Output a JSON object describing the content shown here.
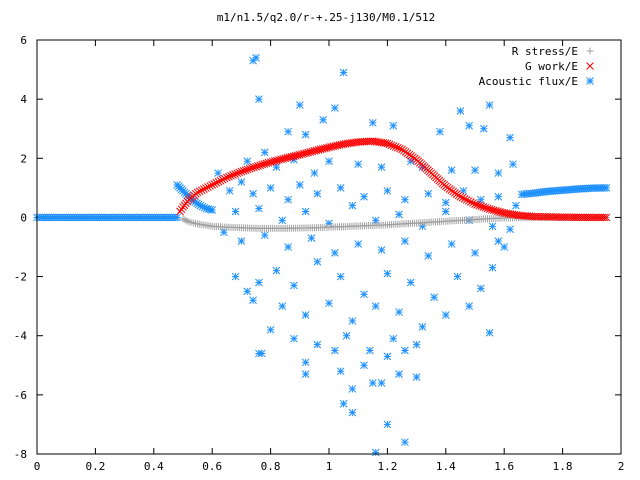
{
  "chart_data": {
    "type": "scatter",
    "title": "m1/n1.5/q2.0/r-+.25-j130/M0.1/512",
    "xlabel": "",
    "ylabel": "",
    "xlim": [
      0,
      2
    ],
    "ylim": [
      -8,
      6
    ],
    "grid": false,
    "legend_position": "top-right",
    "x_ticks": [
      "0",
      "0.2",
      "0.4",
      "0.6",
      "0.8",
      "1",
      "1.2",
      "1.4",
      "1.6",
      "1.8",
      "2"
    ],
    "y_ticks": [
      "6",
      "4",
      "2",
      "0",
      "-2",
      "-4",
      "-6",
      "-8"
    ],
    "series": [
      {
        "name": "R stress/E",
        "marker": "plus",
        "color": "#a0a0a0",
        "points": [
          [
            0.5,
            -0.05
          ],
          [
            0.52,
            -0.15
          ],
          [
            0.55,
            -0.22
          ],
          [
            0.6,
            -0.3
          ],
          [
            0.65,
            -0.33
          ],
          [
            0.7,
            -0.35
          ],
          [
            0.75,
            -0.37
          ],
          [
            0.8,
            -0.37
          ],
          [
            0.85,
            -0.37
          ],
          [
            0.9,
            -0.36
          ],
          [
            0.95,
            -0.35
          ],
          [
            1.0,
            -0.33
          ],
          [
            1.05,
            -0.31
          ],
          [
            1.1,
            -0.29
          ],
          [
            1.15,
            -0.27
          ],
          [
            1.2,
            -0.25
          ],
          [
            1.25,
            -0.22
          ],
          [
            1.3,
            -0.19
          ],
          [
            1.35,
            -0.16
          ],
          [
            1.4,
            -0.13
          ],
          [
            1.45,
            -0.1
          ],
          [
            1.5,
            -0.07
          ],
          [
            1.55,
            -0.04
          ],
          [
            1.6,
            -0.02
          ],
          [
            1.65,
            -0.01
          ],
          [
            1.7,
            0.0
          ],
          [
            1.8,
            0.0
          ],
          [
            1.9,
            0.0
          ],
          [
            1.95,
            0.0
          ]
        ]
      },
      {
        "name": "G work/E",
        "marker": "cross",
        "color": "#ff0000",
        "points": [
          [
            0.49,
            0.2
          ],
          [
            0.5,
            0.35
          ],
          [
            0.52,
            0.6
          ],
          [
            0.55,
            0.85
          ],
          [
            0.6,
            1.1
          ],
          [
            0.65,
            1.35
          ],
          [
            0.7,
            1.55
          ],
          [
            0.75,
            1.72
          ],
          [
            0.8,
            1.87
          ],
          [
            0.85,
            2.0
          ],
          [
            0.9,
            2.12
          ],
          [
            0.95,
            2.25
          ],
          [
            1.0,
            2.37
          ],
          [
            1.05,
            2.48
          ],
          [
            1.1,
            2.55
          ],
          [
            1.15,
            2.58
          ],
          [
            1.2,
            2.5
          ],
          [
            1.25,
            2.3
          ],
          [
            1.3,
            1.95
          ],
          [
            1.35,
            1.5
          ],
          [
            1.4,
            1.05
          ],
          [
            1.45,
            0.7
          ],
          [
            1.5,
            0.45
          ],
          [
            1.55,
            0.28
          ],
          [
            1.6,
            0.15
          ],
          [
            1.65,
            0.07
          ],
          [
            1.7,
            0.03
          ],
          [
            1.8,
            0.01
          ],
          [
            1.9,
            0.0
          ],
          [
            1.95,
            0.0
          ]
        ]
      },
      {
        "name": "Acoustic flux/E",
        "marker": "star",
        "color": "#1e90ff",
        "line_segments": [
          [
            [
              0.0,
              0.0
            ],
            [
              0.48,
              0.0
            ]
          ],
          [
            [
              0.48,
              1.1
            ],
            [
              0.51,
              0.8
            ],
            [
              0.53,
              0.6
            ],
            [
              0.56,
              0.4
            ],
            [
              0.58,
              0.3
            ],
            [
              0.6,
              0.25
            ]
          ],
          [
            [
              1.66,
              0.78
            ],
            [
              1.7,
              0.82
            ],
            [
              1.75,
              0.88
            ],
            [
              1.8,
              0.92
            ],
            [
              1.85,
              0.96
            ],
            [
              1.9,
              0.99
            ],
            [
              1.95,
              1.0
            ]
          ]
        ],
        "points": [
          [
            0.74,
            5.3
          ],
          [
            0.75,
            5.4
          ],
          [
            1.05,
            4.9
          ],
          [
            0.76,
            4.0
          ],
          [
            0.9,
            3.8
          ],
          [
            1.02,
            3.7
          ],
          [
            1.55,
            3.8
          ],
          [
            1.45,
            3.6
          ],
          [
            1.48,
            3.1
          ],
          [
            1.15,
            3.2
          ],
          [
            0.98,
            3.3
          ],
          [
            1.22,
            3.1
          ],
          [
            1.38,
            2.9
          ],
          [
            1.53,
            3.0
          ],
          [
            1.62,
            2.7
          ],
          [
            0.86,
            2.9
          ],
          [
            0.92,
            2.8
          ],
          [
            0.78,
            2.2
          ],
          [
            0.72,
            1.9
          ],
          [
            0.82,
            1.7
          ],
          [
            0.88,
            1.95
          ],
          [
            0.95,
            1.5
          ],
          [
            1.0,
            1.9
          ],
          [
            1.1,
            1.8
          ],
          [
            1.18,
            1.7
          ],
          [
            1.28,
            1.9
          ],
          [
            1.32,
            1.7
          ],
          [
            1.42,
            1.6
          ],
          [
            1.5,
            1.6
          ],
          [
            1.58,
            1.5
          ],
          [
            1.63,
            1.8
          ],
          [
            0.62,
            1.5
          ],
          [
            0.66,
            0.9
          ],
          [
            0.7,
            1.2
          ],
          [
            0.74,
            0.8
          ],
          [
            0.8,
            1.0
          ],
          [
            0.86,
            0.6
          ],
          [
            0.9,
            1.1
          ],
          [
            0.96,
            0.8
          ],
          [
            1.04,
            1.0
          ],
          [
            1.12,
            0.7
          ],
          [
            1.2,
            0.9
          ],
          [
            1.26,
            0.6
          ],
          [
            1.34,
            0.8
          ],
          [
            1.4,
            0.5
          ],
          [
            1.46,
            0.9
          ],
          [
            1.52,
            0.6
          ],
          [
            1.58,
            0.7
          ],
          [
            1.64,
            0.4
          ],
          [
            0.68,
            0.2
          ],
          [
            0.76,
            0.3
          ],
          [
            0.84,
            -0.1
          ],
          [
            0.92,
            0.2
          ],
          [
            1.0,
            -0.2
          ],
          [
            1.08,
            0.4
          ],
          [
            1.16,
            -0.1
          ],
          [
            1.24,
            0.1
          ],
          [
            1.32,
            -0.3
          ],
          [
            1.4,
            0.2
          ],
          [
            1.48,
            -0.1
          ],
          [
            1.56,
            -0.3
          ],
          [
            1.62,
            -0.4
          ],
          [
            0.64,
            -0.5
          ],
          [
            0.7,
            -0.8
          ],
          [
            0.78,
            -0.6
          ],
          [
            0.86,
            -1.0
          ],
          [
            0.94,
            -0.7
          ],
          [
            1.02,
            -1.2
          ],
          [
            1.1,
            -0.9
          ],
          [
            1.18,
            -1.1
          ],
          [
            1.26,
            -0.8
          ],
          [
            1.34,
            -1.3
          ],
          [
            1.42,
            -0.9
          ],
          [
            1.5,
            -1.2
          ],
          [
            1.58,
            -0.8
          ],
          [
            1.6,
            -1.0
          ],
          [
            0.68,
            -2.0
          ],
          [
            0.72,
            -2.5
          ],
          [
            0.76,
            -2.2
          ],
          [
            0.82,
            -1.8
          ],
          [
            0.88,
            -2.3
          ],
          [
            0.96,
            -1.5
          ],
          [
            1.04,
            -2.0
          ],
          [
            1.12,
            -2.6
          ],
          [
            1.2,
            -1.9
          ],
          [
            1.28,
            -2.2
          ],
          [
            1.36,
            -2.7
          ],
          [
            1.44,
            -2.0
          ],
          [
            1.52,
            -2.4
          ],
          [
            1.56,
            -1.7
          ],
          [
            0.74,
            -2.8
          ],
          [
            0.84,
            -3.0
          ],
          [
            0.92,
            -3.3
          ],
          [
            1.0,
            -2.9
          ],
          [
            1.08,
            -3.5
          ],
          [
            1.16,
            -3.0
          ],
          [
            1.24,
            -3.2
          ],
          [
            1.32,
            -3.7
          ],
          [
            1.4,
            -3.3
          ],
          [
            1.48,
            -3.0
          ],
          [
            1.55,
            -3.9
          ],
          [
            0.8,
            -3.8
          ],
          [
            0.88,
            -4.1
          ],
          [
            0.96,
            -4.3
          ],
          [
            1.06,
            -4.0
          ],
          [
            1.14,
            -4.5
          ],
          [
            1.22,
            -4.1
          ],
          [
            1.3,
            -4.3
          ],
          [
            0.76,
            -4.6
          ],
          [
            0.77,
            -4.6
          ],
          [
            0.92,
            -4.9
          ],
          [
            1.02,
            -4.5
          ],
          [
            1.12,
            -5.0
          ],
          [
            1.2,
            -4.7
          ],
          [
            1.26,
            -4.5
          ],
          [
            0.92,
            -5.3
          ],
          [
            1.04,
            -5.2
          ],
          [
            1.15,
            -5.6
          ],
          [
            1.24,
            -5.3
          ],
          [
            1.3,
            -5.4
          ],
          [
            1.08,
            -5.8
          ],
          [
            1.18,
            -5.6
          ],
          [
            1.05,
            -6.3
          ],
          [
            1.08,
            -6.6
          ],
          [
            1.2,
            -7.0
          ],
          [
            1.26,
            -7.6
          ],
          [
            1.16,
            -7.95
          ]
        ]
      }
    ]
  },
  "colors": {
    "r_stress": "#a0a0a0",
    "g_work": "#ff0000",
    "acoustic_flux": "#1e90ff"
  }
}
